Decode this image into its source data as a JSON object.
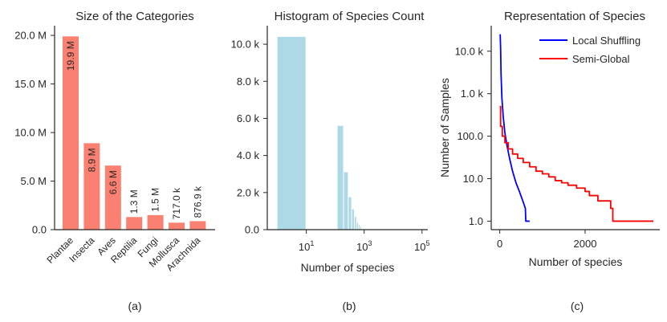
{
  "chart_data": [
    {
      "type": "bar",
      "panel_label": "(a)",
      "title": "Size of the Categories",
      "xlabel": "",
      "ylabel": "",
      "categories": [
        "Plantae",
        "Insecta",
        "Aves",
        "Reptilia",
        "Fungi",
        "Mollusca",
        "Arachnida"
      ],
      "values": [
        19900000,
        8900000,
        6600000,
        1300000,
        1500000,
        717000,
        876900
      ],
      "value_labels": [
        "19.9 M",
        "8.9 M",
        "6.6 M",
        "1.3 M",
        "1.5 M",
        "717.0 k",
        "876.9 k"
      ],
      "yticks": [
        0,
        5000000,
        10000000,
        15000000,
        20000000
      ],
      "ytick_labels": [
        "0.0",
        "5.0 M",
        "10.0 M",
        "15.0 M",
        "20.0 M"
      ],
      "ylim": [
        0,
        21000000
      ],
      "bar_color": "#fa8072",
      "grid": false
    },
    {
      "type": "histogram",
      "panel_label": "(b)",
      "title": "Histogram of Species Count",
      "xlabel": "Number of species",
      "ylabel": "",
      "x_scale": "log",
      "xlim_log10": [
        -0.35,
        5.2
      ],
      "bins": [
        {
          "x0": 1,
          "x1": 10,
          "count": 10400
        },
        {
          "x0": 120,
          "x1": 200,
          "count": 5600
        },
        {
          "x0": 200,
          "x1": 290,
          "count": 3100
        },
        {
          "x0": 290,
          "x1": 380,
          "count": 1750
        },
        {
          "x0": 380,
          "x1": 470,
          "count": 1100
        },
        {
          "x0": 470,
          "x1": 560,
          "count": 700
        },
        {
          "x0": 560,
          "x1": 650,
          "count": 400
        },
        {
          "x0": 650,
          "x1": 740,
          "count": 250
        },
        {
          "x0": 740,
          "x1": 830,
          "count": 150
        }
      ],
      "xticks": [
        {
          "value": 10,
          "base": "10",
          "exp": "1"
        },
        {
          "value": 1000,
          "base": "10",
          "exp": "3"
        },
        {
          "value": 100000,
          "base": "10",
          "exp": "5"
        }
      ],
      "yticks": [
        0,
        2000,
        4000,
        6000,
        8000,
        10000
      ],
      "ytick_labels": [
        "0.0",
        "2.0 k",
        "4.0 k",
        "6.0 k",
        "8.0 k",
        "10.0 k"
      ],
      "ylim": [
        0,
        11000
      ],
      "bar_color": "#add8e6",
      "grid": false
    },
    {
      "type": "line",
      "panel_label": "(c)",
      "title": "Representation of Species",
      "xlabel": "Number of species",
      "ylabel": "Number of Samples",
      "y_scale": "log",
      "xlim": [
        -200,
        3750
      ],
      "ylim_log10": [
        -0.2,
        4.6
      ],
      "xticks": [
        0,
        2000
      ],
      "xtick_labels": [
        "0",
        "2000"
      ],
      "yticks": [
        1,
        10,
        100,
        1000,
        10000
      ],
      "ytick_labels": [
        "1.0",
        "10.0",
        "100.0",
        "1.0 k",
        "10.0 k"
      ],
      "legend_position": "top-right",
      "series": [
        {
          "name": "Local Shuffling",
          "color": "#0000ff",
          "x": [
            10,
            20,
            30,
            50,
            80,
            120,
            170,
            230,
            300,
            380,
            460,
            540,
            600,
            610,
            700
          ],
          "y": [
            25000,
            12000,
            3000,
            800,
            300,
            120,
            60,
            30,
            15,
            8,
            5,
            3,
            2,
            1,
            1
          ]
        },
        {
          "name": "Semi-Global",
          "color": "#ff0000",
          "x": [
            0,
            20,
            60,
            120,
            200,
            300,
            420,
            550,
            700,
            850,
            1000,
            1150,
            1300,
            1450,
            1600,
            1800,
            2000,
            2100,
            2300,
            2600,
            2650,
            3000,
            3600
          ],
          "y": [
            500,
            170,
            100,
            70,
            50,
            38,
            30,
            24,
            19,
            15,
            13,
            11,
            9,
            8,
            7,
            6,
            5,
            4,
            3,
            2,
            1,
            1,
            1
          ]
        }
      ],
      "grid": false
    }
  ]
}
